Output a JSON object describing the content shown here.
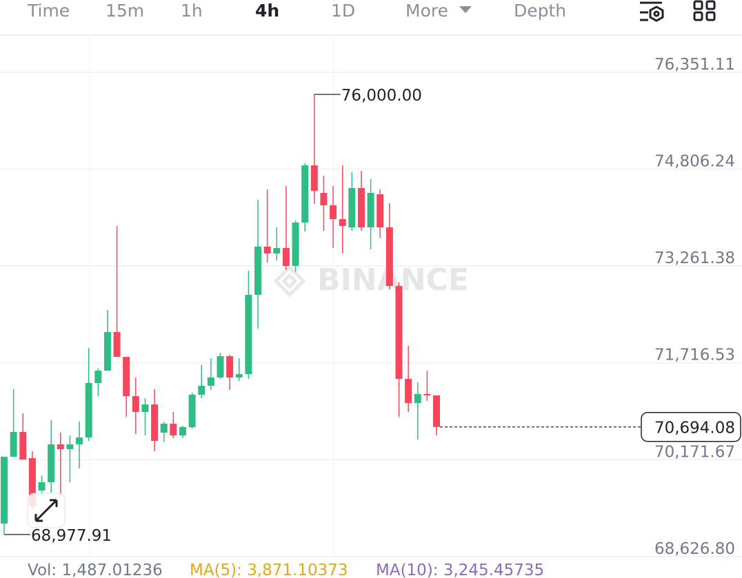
{
  "tabs": [
    "Time",
    "15m",
    "1h",
    "4h",
    "1D",
    "More",
    "Depth"
  ],
  "chart_data": {
    "type": "candlestick",
    "watermark": "BINANCE",
    "up_color": "#2ebd85",
    "down_color": "#f6465d",
    "ylim": [
      68581,
      76934
    ],
    "yticks": [
      {
        "value": 76351.11,
        "label": "76,351.11"
      },
      {
        "value": 74806.24,
        "label": "74,806.24"
      },
      {
        "value": 73261.38,
        "label": "73,261.38"
      },
      {
        "value": 71716.53,
        "label": "71,716.53"
      },
      {
        "value": 70171.67,
        "label": "70,171.67"
      },
      {
        "value": 68626.8,
        "label": "68,626.80"
      }
    ],
    "grid": true,
    "high_annotation": {
      "value": 76000.0,
      "label": "76,000.00"
    },
    "low_annotation": {
      "value": 68977.91,
      "label": "68,977.91"
    },
    "last_price": {
      "value": 70694.08,
      "label": "70,694.08"
    },
    "open": [
      69153,
      70219,
      70614,
      70197,
      69680,
      69812,
      70416,
      70340,
      70416,
      70526,
      71395,
      71592,
      72208,
      71812,
      71186,
      70933,
      71054,
      70603,
      70746,
      70559,
      70691,
      71208,
      71351,
      71483,
      71823,
      71483,
      71537,
      72801,
      73571,
      73461,
      73549,
      73263,
      73955,
      74867,
      74428,
      74230,
      74010,
      73878,
      74505,
      73878,
      74406,
      73878,
      72944,
      71461,
      71076,
      71219,
      71197
    ],
    "high": [
      70219,
      71296,
      70911,
      70307,
      69922,
      70801,
      70603,
      70559,
      70779,
      71955,
      71625,
      72560,
      73900,
      71812,
      71483,
      71153,
      71296,
      70779,
      70933,
      70713,
      71241,
      71680,
      71790,
      71878,
      71845,
      71790,
      73186,
      74318,
      74483,
      73878,
      74538,
      73988,
      74900,
      76000,
      74703,
      74538,
      74867,
      74758,
      74780,
      74648,
      74483,
      74263,
      72999,
      71988,
      71406,
      71592,
      71197
    ],
    "low": [
      68977.91,
      70219,
      70175,
      69372,
      69592,
      69647,
      69592,
      69812,
      70032,
      70471,
      71186,
      71592,
      71812,
      70856,
      70581,
      70559,
      70307,
      70449,
      70515,
      70515,
      70669,
      71153,
      71285,
      71461,
      71285,
      71428,
      71461,
      72263,
      73318,
      73351,
      73197,
      73164,
      73812,
      74252,
      73823,
      73549,
      73461,
      73823,
      73823,
      73527,
      73713,
      72889,
      70856,
      70933,
      70493,
      71109,
      70559
    ],
    "close": [
      70219,
      70614,
      70175,
      69427,
      69812,
      70416,
      70340,
      70416,
      70526,
      71395,
      71592,
      72208,
      71812,
      71186,
      70933,
      71054,
      70471,
      70746,
      70559,
      70691,
      71208,
      71351,
      71483,
      71823,
      71483,
      71537,
      72801,
      73571,
      73461,
      73549,
      73263,
      73955,
      74867,
      74461,
      74230,
      74010,
      73900,
      74505,
      73878,
      74428,
      73878,
      72944,
      71461,
      71076,
      71219,
      71197,
      70694.08
    ]
  },
  "footer": {
    "vol": "Vol: 1,487.01236",
    "ma5": "MA(5): 3,871.10373",
    "ma10": "MA(10): 3,245.45735"
  }
}
